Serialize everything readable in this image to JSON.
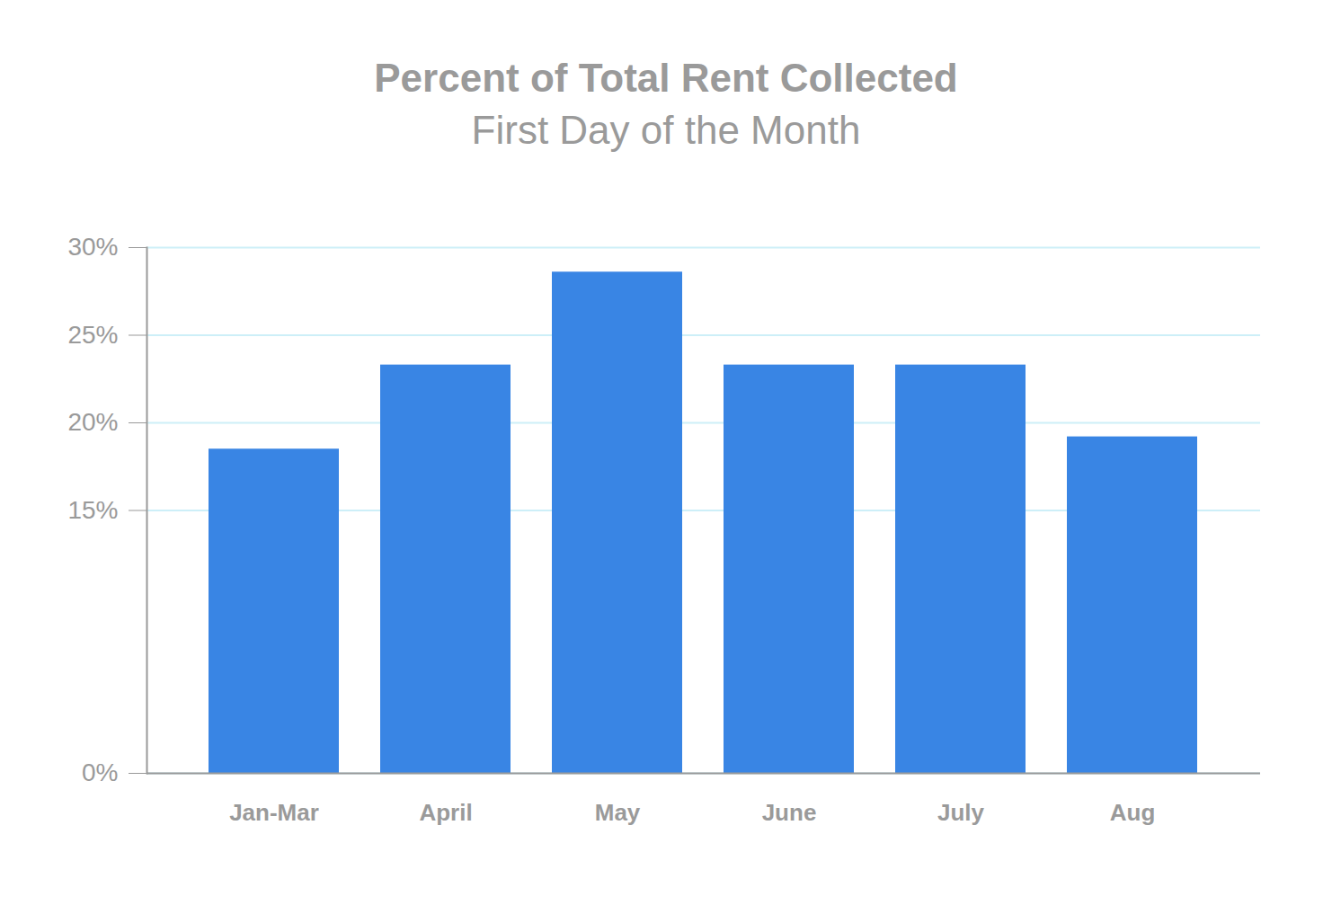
{
  "chart_data": {
    "type": "bar",
    "title": "Percent of Total Rent Collected",
    "subtitle": "First Day of the Month",
    "categories": [
      "Jan-Mar",
      "April",
      "May",
      "June",
      "July",
      "Aug"
    ],
    "values": [
      18.5,
      23.3,
      28.6,
      23.3,
      23.3,
      19.2
    ],
    "color": "#3985e4",
    "ylim": [
      0,
      30
    ],
    "yticks": [
      {
        "value": 0,
        "label": "0%"
      },
      {
        "value": 15,
        "label": "15%"
      },
      {
        "value": 20,
        "label": "20%"
      },
      {
        "value": 25,
        "label": "25%"
      },
      {
        "value": 30,
        "label": "30%"
      }
    ],
    "grid": true
  }
}
